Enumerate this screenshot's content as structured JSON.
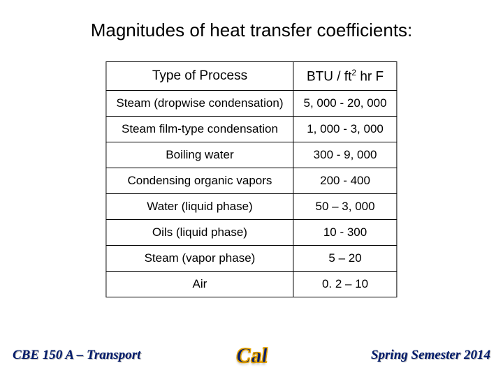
{
  "title": "Magnitudes of heat transfer coefficients:",
  "table": {
    "header_process": "Type of Process",
    "header_value_prefix": "BTU / ft",
    "header_value_sup": "2",
    "header_value_suffix": " hr F",
    "rows": [
      {
        "process": "Steam (dropwise condensation)",
        "value": "5, 000 - 20, 000"
      },
      {
        "process": "Steam film-type condensation",
        "value": "1, 000 - 3, 000"
      },
      {
        "process": "Boiling water",
        "value": "300 - 9, 000"
      },
      {
        "process": "Condensing organic vapors",
        "value": "200 - 400"
      },
      {
        "process": "Water (liquid phase)",
        "value": "50 – 3, 000"
      },
      {
        "process": "Oils (liquid phase)",
        "value": "10 - 300"
      },
      {
        "process": "Steam (vapor phase)",
        "value": "5 – 20"
      },
      {
        "process": "Air",
        "value": "0. 2 – 10"
      }
    ]
  },
  "footer": {
    "course": "CBE 150 A – Transport",
    "semester": "Spring Semester 2014",
    "logo_text": "Cal"
  },
  "colors": {
    "text": "#000000",
    "footer_text": "#001a6a",
    "logo_outline": "#e8a500",
    "background": "#ffffff",
    "border": "#000000"
  }
}
